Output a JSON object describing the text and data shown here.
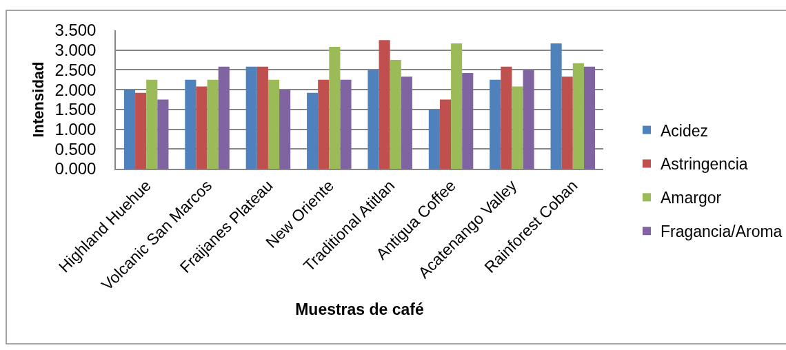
{
  "chart_data": {
    "type": "bar",
    "xlabel": "Muestras de café",
    "ylabel": "Intensidad",
    "categories": [
      "Highland Huehue",
      "Volcanic San Marcos",
      "Fraijanes Plateau",
      "New Oriente",
      "Traditional Atitlan",
      "Antigua Coffee",
      "Acatenango Valley",
      "Rainforest Coban"
    ],
    "series": [
      {
        "name": "Acidez",
        "color": "#4f81bd",
        "values": [
          2.0,
          2.25,
          2.58,
          1.92,
          2.5,
          1.5,
          2.25,
          3.17
        ]
      },
      {
        "name": "Astringencia",
        "color": "#c0504d",
        "values": [
          1.92,
          2.08,
          2.58,
          2.25,
          3.25,
          1.75,
          2.58,
          2.33
        ]
      },
      {
        "name": "Amargor",
        "color": "#9bbb59",
        "values": [
          2.25,
          2.25,
          2.25,
          3.08,
          2.75,
          3.17,
          2.08,
          2.67
        ]
      },
      {
        "name": "Fragancia/Aroma",
        "color": "#8064a2",
        "values": [
          1.75,
          2.58,
          2.0,
          2.25,
          2.33,
          2.42,
          2.5,
          2.58
        ]
      }
    ],
    "ylim": [
      0,
      3.5
    ],
    "yticks": [
      {
        "value": 0,
        "label": "0.000"
      },
      {
        "value": 0.5,
        "label": "0.500"
      },
      {
        "value": 1,
        "label": "1.000"
      },
      {
        "value": 1.5,
        "label": "1.500"
      },
      {
        "value": 2,
        "label": "2.000"
      },
      {
        "value": 2.5,
        "label": "2.500"
      },
      {
        "value": 3,
        "label": "3.000"
      },
      {
        "value": 3.5,
        "label": "3.500"
      }
    ],
    "grid": "y",
    "legend": "right"
  }
}
